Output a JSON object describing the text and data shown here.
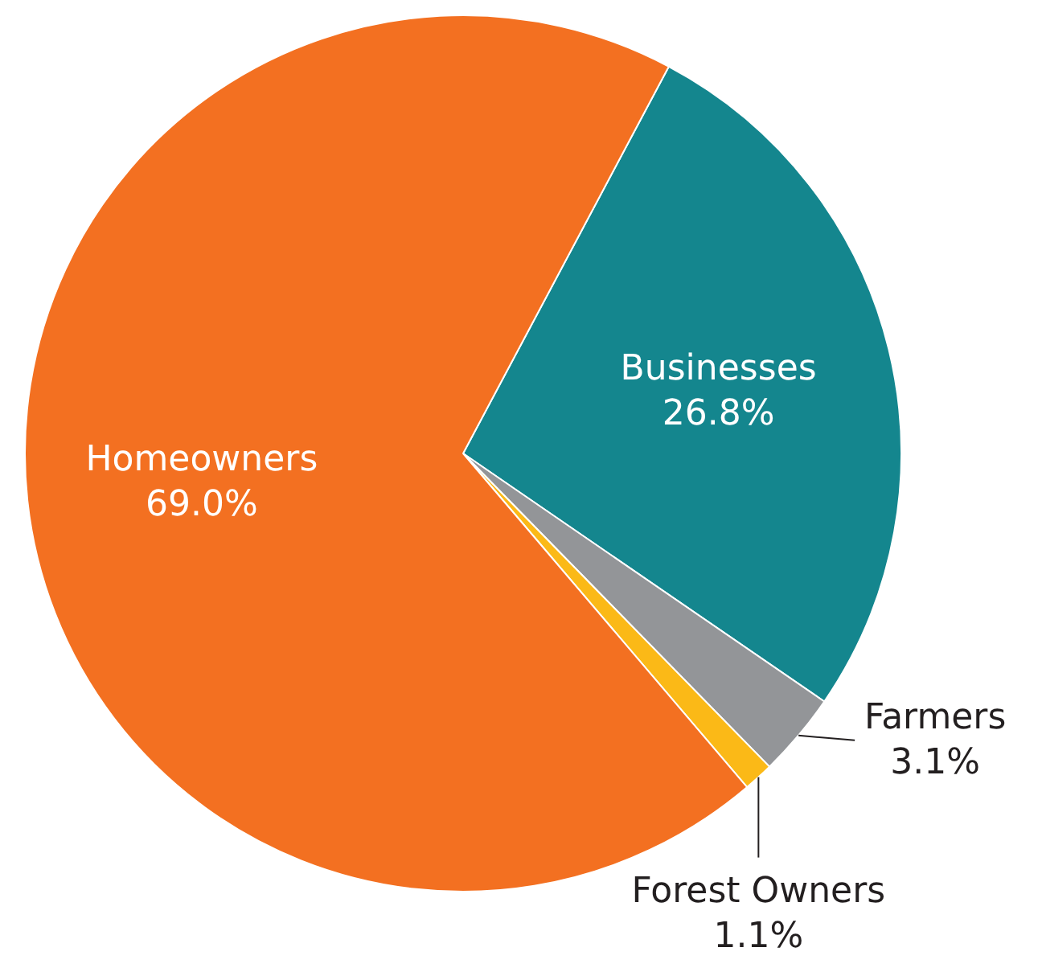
{
  "chart_data": {
    "type": "pie",
    "categories": [
      "Businesses",
      "Farmers",
      "Forest Owners",
      "Homeowners"
    ],
    "values": [
      26.8,
      3.1,
      1.1,
      69.0
    ],
    "colors": [
      "#14868e",
      "#939598",
      "#fbb917",
      "#f37021"
    ],
    "value_labels": [
      "26.8%",
      "3.1%",
      "1.1%",
      "69.0%"
    ],
    "legend": false
  }
}
